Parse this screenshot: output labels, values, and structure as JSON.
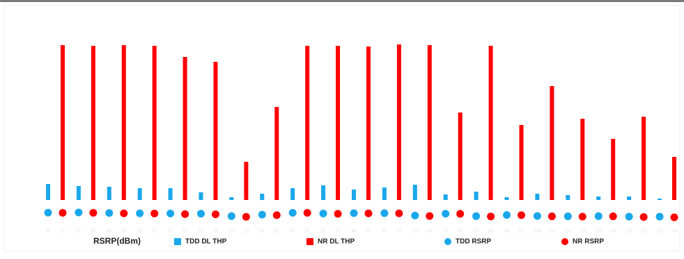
{
  "chart_data": {
    "type": "bar",
    "x_label": "RSRP(dBm)",
    "ylim": [
      0,
      230
    ],
    "y2lim": [
      85,
      114
    ],
    "legend": "bottom",
    "series": [
      {
        "name": "TDD DL THP",
        "type": "bar",
        "color": "#1aa7ec",
        "values": [
          23,
          20,
          19,
          17,
          17,
          11,
          4,
          9,
          17,
          21,
          15,
          18,
          22,
          8,
          12,
          4,
          9,
          7,
          5,
          5,
          2
        ]
      },
      {
        "name": "NR DL THP",
        "type": "bar",
        "color": "#ff0000",
        "values": [
          223,
          222,
          223,
          222,
          206,
          199,
          55,
          134,
          222,
          222,
          221,
          224,
          223,
          126,
          222,
          108,
          164,
          117,
          88,
          120,
          62
        ]
      },
      {
        "name": "TDD RSRP",
        "type": "scatter",
        "axis": "y2",
        "color": "#1aa7ec",
        "values": [
          86,
          85,
          88,
          90,
          91,
          92,
          107,
          98,
          87,
          91,
          89,
          89,
          103,
          92,
          107,
          100,
          106,
          108,
          107,
          110,
          110
        ]
      },
      {
        "name": "NR RSRP",
        "type": "scatter",
        "axis": "y2",
        "color": "#ff0000",
        "values": [
          87,
          87,
          90,
          91,
          95,
          96,
          111,
          101,
          87,
          93,
          90,
          90,
          106,
          93,
          109,
          101,
          108,
          110,
          108,
          112,
          114
        ]
      }
    ]
  }
}
